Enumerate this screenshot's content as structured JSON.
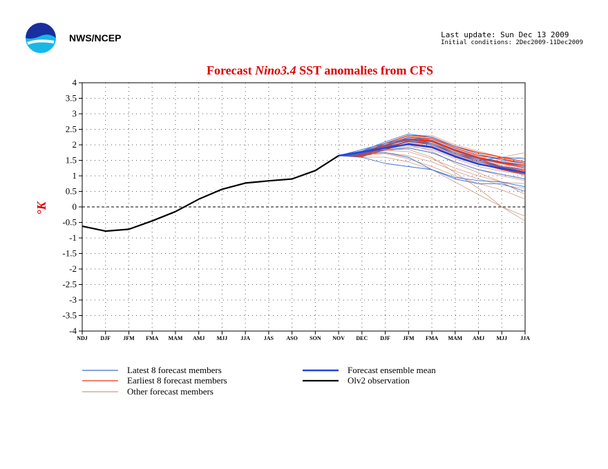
{
  "header": {
    "org": "NWS/NCEP",
    "last_update": "Last update: Sun Dec 13 2009",
    "initial_conditions": "Initial conditions: 2Dec2009-11Dec2009"
  },
  "chart_data": {
    "type": "line",
    "title_parts": [
      "Forecast ",
      "Nino3.4",
      " SST anomalies from CFS"
    ],
    "ylabel": "°K",
    "xlabel": "",
    "ylim": [
      -4,
      4
    ],
    "yticks": [
      "4",
      "3.5",
      "3",
      "2.5",
      "2",
      "1.5",
      "1",
      "0.5",
      "0",
      "-0.5",
      "-1",
      "-1.5",
      "-2",
      "-2.5",
      "-3",
      "-3.5",
      "-4"
    ],
    "categories": [
      "NDJ",
      "DJF",
      "JFM",
      "FMA",
      "MAM",
      "AMJ",
      "MJJ",
      "JJA",
      "JAS",
      "ASO",
      "SON",
      "NOV",
      "DEC",
      "DJF",
      "JFM",
      "FMA",
      "MAM",
      "AMJ",
      "MJJ",
      "JJA"
    ],
    "grid": true,
    "legend_position": "bottom",
    "colors": {
      "title": "#dd0000",
      "latest": "#3a6fd6",
      "earliest": "#ee3311",
      "other": "#d29a86",
      "mean": "#2244dd",
      "obs": "#000000"
    },
    "series": [
      {
        "name": "Olv2 observation",
        "style": "obs",
        "values": [
          -0.62,
          -0.78,
          -0.72,
          -0.45,
          -0.15,
          0.25,
          0.57,
          0.77,
          0.84,
          0.9,
          1.17,
          1.65,
          null,
          null,
          null,
          null,
          null,
          null,
          null,
          null
        ]
      },
      {
        "name": "Forecast ensemble mean",
        "style": "mean",
        "values": [
          null,
          null,
          null,
          null,
          null,
          null,
          null,
          null,
          null,
          null,
          null,
          1.65,
          1.77,
          1.9,
          2.02,
          1.92,
          1.62,
          1.38,
          1.24,
          1.1
        ]
      },
      {
        "name": "Latest 8 forecast members",
        "style": "latest",
        "values": [
          null,
          null,
          null,
          null,
          null,
          null,
          null,
          null,
          null,
          null,
          null,
          1.65,
          1.8,
          2.1,
          2.35,
          2.25,
          1.95,
          1.7,
          1.5,
          1.4
        ]
      },
      {
        "style": "latest",
        "values": [
          null,
          null,
          null,
          null,
          null,
          null,
          null,
          null,
          null,
          null,
          null,
          1.65,
          1.75,
          1.95,
          2.1,
          2.0,
          1.7,
          1.45,
          1.3,
          1.2
        ]
      },
      {
        "style": "latest",
        "values": [
          null,
          null,
          null,
          null,
          null,
          null,
          null,
          null,
          null,
          null,
          null,
          1.65,
          1.85,
          2.05,
          2.2,
          2.05,
          1.75,
          1.55,
          1.45,
          1.3
        ]
      },
      {
        "style": "latest",
        "values": [
          null,
          null,
          null,
          null,
          null,
          null,
          null,
          null,
          null,
          null,
          null,
          1.65,
          1.7,
          1.75,
          1.6,
          1.2,
          0.95,
          0.85,
          0.8,
          0.65
        ]
      },
      {
        "style": "latest",
        "values": [
          null,
          null,
          null,
          null,
          null,
          null,
          null,
          null,
          null,
          null,
          null,
          1.65,
          1.6,
          1.4,
          1.3,
          1.2,
          0.9,
          0.75,
          0.75,
          0.5
        ]
      },
      {
        "style": "latest",
        "values": [
          null,
          null,
          null,
          null,
          null,
          null,
          null,
          null,
          null,
          null,
          null,
          1.65,
          1.8,
          2.0,
          2.25,
          2.15,
          1.85,
          1.55,
          1.3,
          1.1
        ]
      },
      {
        "style": "latest",
        "values": [
          null,
          null,
          null,
          null,
          null,
          null,
          null,
          null,
          null,
          null,
          null,
          1.65,
          1.72,
          1.85,
          1.9,
          1.75,
          1.45,
          1.2,
          1.05,
          0.9
        ]
      },
      {
        "style": "latest",
        "values": [
          null,
          null,
          null,
          null,
          null,
          null,
          null,
          null,
          null,
          null,
          null,
          1.65,
          1.78,
          2.0,
          2.15,
          2.05,
          1.7,
          1.5,
          1.6,
          1.55
        ]
      },
      {
        "name": "Earliest 8 forecast members",
        "style": "earliest",
        "values": [
          null,
          null,
          null,
          null,
          null,
          null,
          null,
          null,
          null,
          null,
          null,
          1.65,
          1.68,
          1.95,
          2.2,
          2.15,
          1.85,
          1.6,
          1.45,
          1.35
        ]
      },
      {
        "style": "earliest",
        "values": [
          null,
          null,
          null,
          null,
          null,
          null,
          null,
          null,
          null,
          null,
          null,
          1.65,
          1.72,
          2.05,
          2.3,
          2.25,
          1.95,
          1.75,
          1.6,
          1.45
        ]
      },
      {
        "style": "earliest",
        "values": [
          null,
          null,
          null,
          null,
          null,
          null,
          null,
          null,
          null,
          null,
          null,
          1.65,
          1.65,
          1.9,
          2.1,
          2.05,
          1.75,
          1.5,
          1.3,
          1.2
        ]
      },
      {
        "style": "earliest",
        "values": [
          null,
          null,
          null,
          null,
          null,
          null,
          null,
          null,
          null,
          null,
          null,
          1.65,
          1.75,
          2.0,
          2.15,
          2.1,
          1.8,
          1.55,
          1.4,
          1.25
        ]
      },
      {
        "style": "earliest",
        "values": [
          null,
          null,
          null,
          null,
          null,
          null,
          null,
          null,
          null,
          null,
          null,
          1.65,
          1.7,
          1.95,
          2.25,
          2.2,
          1.9,
          1.65,
          1.55,
          1.4
        ]
      },
      {
        "style": "earliest",
        "values": [
          null,
          null,
          null,
          null,
          null,
          null,
          null,
          null,
          null,
          null,
          null,
          1.65,
          1.62,
          1.85,
          2.05,
          1.95,
          1.65,
          1.4,
          1.2,
          1.05
        ]
      },
      {
        "style": "earliest",
        "values": [
          null,
          null,
          null,
          null,
          null,
          null,
          null,
          null,
          null,
          null,
          null,
          1.65,
          1.74,
          1.98,
          2.18,
          2.12,
          1.82,
          1.58,
          1.42,
          1.3
        ]
      },
      {
        "style": "earliest",
        "values": [
          null,
          null,
          null,
          null,
          null,
          null,
          null,
          null,
          null,
          null,
          null,
          1.65,
          1.68,
          1.92,
          2.12,
          2.0,
          1.7,
          1.45,
          1.28,
          1.15
        ]
      },
      {
        "name": "Other forecast members",
        "style": "other",
        "values": [
          null,
          null,
          null,
          null,
          null,
          null,
          null,
          null,
          null,
          null,
          null,
          1.65,
          1.75,
          2.0,
          2.3,
          2.3,
          2.0,
          1.8,
          1.6,
          1.75
        ]
      },
      {
        "style": "other",
        "values": [
          null,
          null,
          null,
          null,
          null,
          null,
          null,
          null,
          null,
          null,
          null,
          1.65,
          1.72,
          1.9,
          2.0,
          1.8,
          1.4,
          1.1,
          0.8,
          0.4
        ]
      },
      {
        "style": "other",
        "values": [
          null,
          null,
          null,
          null,
          null,
          null,
          null,
          null,
          null,
          null,
          null,
          1.65,
          1.7,
          1.85,
          1.85,
          1.6,
          1.1,
          0.6,
          0.0,
          -0.45
        ]
      },
      {
        "style": "other",
        "values": [
          null,
          null,
          null,
          null,
          null,
          null,
          null,
          null,
          null,
          null,
          null,
          1.65,
          1.6,
          1.6,
          1.45,
          1.2,
          0.8,
          0.4,
          0.0,
          -0.3
        ]
      },
      {
        "style": "other",
        "values": [
          null,
          null,
          null,
          null,
          null,
          null,
          null,
          null,
          null,
          null,
          null,
          1.65,
          1.75,
          1.95,
          2.1,
          2.0,
          1.7,
          1.45,
          1.25,
          1.0
        ]
      },
      {
        "style": "other",
        "values": [
          null,
          null,
          null,
          null,
          null,
          null,
          null,
          null,
          null,
          null,
          null,
          1.65,
          1.8,
          2.05,
          2.2,
          2.1,
          1.75,
          1.5,
          1.35,
          1.2
        ]
      },
      {
        "style": "other",
        "values": [
          null,
          null,
          null,
          null,
          null,
          null,
          null,
          null,
          null,
          null,
          null,
          1.65,
          1.68,
          1.8,
          1.9,
          1.75,
          1.45,
          1.2,
          1.0,
          0.85
        ]
      },
      {
        "style": "other",
        "values": [
          null,
          null,
          null,
          null,
          null,
          null,
          null,
          null,
          null,
          null,
          null,
          1.65,
          1.7,
          1.75,
          1.65,
          1.45,
          1.15,
          0.9,
          0.7,
          0.6
        ]
      },
      {
        "style": "other",
        "values": [
          null,
          null,
          null,
          null,
          null,
          null,
          null,
          null,
          null,
          null,
          null,
          1.65,
          1.66,
          1.72,
          1.55,
          1.3,
          1.0,
          0.75,
          0.55,
          0.25
        ]
      },
      {
        "style": "other",
        "values": [
          null,
          null,
          null,
          null,
          null,
          null,
          null,
          null,
          null,
          null,
          null,
          1.65,
          1.76,
          1.98,
          2.15,
          2.2,
          1.95,
          1.7,
          1.55,
          1.6
        ]
      },
      {
        "style": "other",
        "values": [
          null,
          null,
          null,
          null,
          null,
          null,
          null,
          null,
          null,
          null,
          null,
          1.65,
          1.73,
          1.88,
          1.95,
          1.85,
          1.55,
          1.3,
          1.15,
          1.05
        ]
      },
      {
        "style": "other",
        "values": [
          null,
          null,
          null,
          null,
          null,
          null,
          null,
          null,
          null,
          null,
          null,
          1.65,
          1.71,
          1.82,
          1.78,
          1.55,
          1.25,
          1.0,
          0.8,
          0.75
        ]
      }
    ]
  }
}
